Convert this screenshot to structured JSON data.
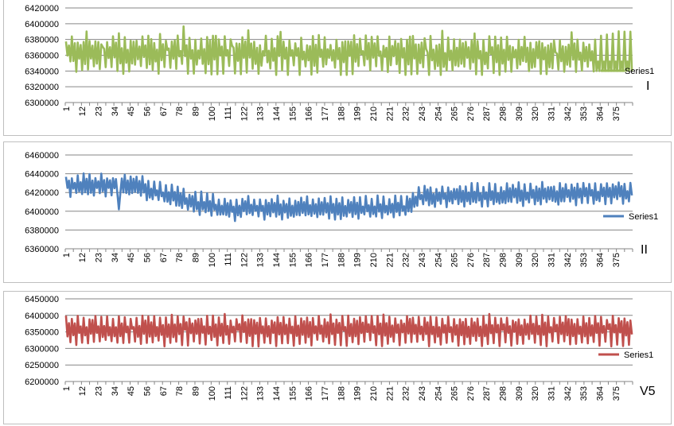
{
  "chart_data": [
    {
      "type": "line",
      "panel_label": "I",
      "color": "#9bbb59",
      "ylim": [
        6300000,
        6420000
      ],
      "yticks": [
        6300000,
        6320000,
        6340000,
        6360000,
        6380000,
        6400000,
        6420000
      ],
      "ytick_labels": [
        "6300000",
        "6320000",
        "6340000",
        "6360000",
        "6380000",
        "6400000",
        "6420000"
      ],
      "x_count": 386,
      "xtick_labels": [
        "1",
        "12",
        "23",
        "34",
        "45",
        "56",
        "67",
        "78",
        "89",
        "100",
        "111",
        "122",
        "133",
        "144",
        "155",
        "166",
        "177",
        "188",
        "199",
        "210",
        "221",
        "232",
        "243",
        "254",
        "265",
        "276",
        "287",
        "298",
        "309",
        "320",
        "331",
        "342",
        "353",
        "364",
        "375"
      ],
      "legend": "right",
      "series": [
        {
          "name": "Series1",
          "baseline": 6363000,
          "amplitude": 20000,
          "period": 3.8,
          "trend": -4000,
          "flat_tail_value": 6340000
        }
      ]
    },
    {
      "type": "line",
      "panel_label": "II",
      "color": "#4f81bd",
      "ylim": [
        6360000,
        6460000
      ],
      "yticks": [
        6360000,
        6380000,
        6400000,
        6420000,
        6440000,
        6460000
      ],
      "ytick_labels": [
        "6360000",
        "6380000",
        "6400000",
        "6420000",
        "6440000",
        "6460000"
      ],
      "x_count": 386,
      "xtick_labels": [
        "1",
        "12",
        "23",
        "34",
        "45",
        "56",
        "67",
        "78",
        "89",
        "100",
        "111",
        "122",
        "133",
        "144",
        "155",
        "166",
        "177",
        "188",
        "199",
        "210",
        "221",
        "232",
        "243",
        "254",
        "265",
        "276",
        "287",
        "298",
        "309",
        "320",
        "331",
        "342",
        "353",
        "364",
        "375"
      ],
      "legend": "right",
      "series": [
        {
          "name": "Series1"
        }
      ]
    },
    {
      "type": "line",
      "panel_label": "V5",
      "color": "#c0504d",
      "ylim": [
        6200000,
        6450000
      ],
      "yticks": [
        6200000,
        6250000,
        6300000,
        6350000,
        6400000,
        6450000
      ],
      "ytick_labels": [
        "6200000",
        "6250000",
        "6300000",
        "6350000",
        "6400000",
        "6450000"
      ],
      "x_count": 386,
      "xtick_labels": [
        "1",
        "12",
        "23",
        "34",
        "45",
        "56",
        "67",
        "78",
        "89",
        "100",
        "111",
        "122",
        "133",
        "144",
        "155",
        "166",
        "177",
        "188",
        "199",
        "210",
        "221",
        "232",
        "243",
        "254",
        "265",
        "276",
        "287",
        "298",
        "309",
        "320",
        "331",
        "342",
        "353",
        "364",
        "375"
      ],
      "legend": "right",
      "series": [
        {
          "name": "Series1",
          "baseline": 6350000,
          "amplitude": 42000,
          "period": 3.8
        }
      ]
    }
  ]
}
